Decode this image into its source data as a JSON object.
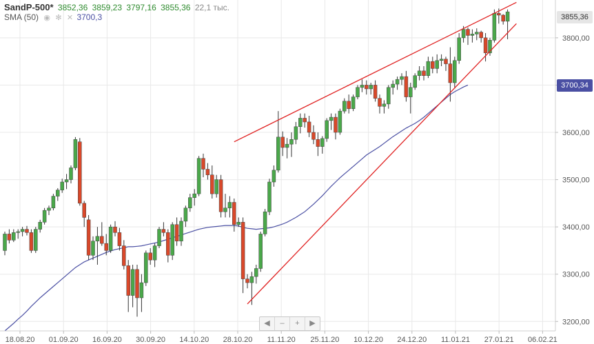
{
  "header": {
    "symbol": "SandP-500*",
    "last": "3852,36",
    "high": "3859,23",
    "low": "3797,16",
    "close": "3855,36",
    "volume": "22,1 тыс.",
    "sma_label": "SMA (50)",
    "sma_value": "3700,3",
    "eye_icon": "eye-icon",
    "gear_icon": "gear-icon",
    "close_icon": "close-icon"
  },
  "tags": {
    "price": "3855,36",
    "sma": "3700,34"
  },
  "nav": {
    "left": "◀",
    "minus": "–",
    "plus": "+",
    "right": "▶"
  },
  "colors": {
    "up": "#4aa84a",
    "down": "#d9482a",
    "sma": "#4a4fa3",
    "trend": "#e02020",
    "grid": "#e8e8e8"
  },
  "chart_data": {
    "type": "candlestick",
    "y_ticks": [
      "3200,00",
      "3300,00",
      "3400,00",
      "3500,00",
      "3600,00",
      "3700,00",
      "3800,00"
    ],
    "x_ticks": [
      "18.08.20",
      "01.09.20",
      "16.09.20",
      "30.09.20",
      "14.10.20",
      "28.10.20",
      "11.11.20",
      "25.11.20",
      "10.12.20",
      "24.12.20",
      "11.01.21",
      "27.01.21",
      "06.02.21"
    ],
    "ylim": [
      3180,
      3880
    ],
    "candles": [
      [
        3350,
        3390,
        3340,
        3385
      ],
      [
        3385,
        3395,
        3365,
        3372
      ],
      [
        3372,
        3395,
        3368,
        3388
      ],
      [
        3388,
        3395,
        3375,
        3390
      ],
      [
        3390,
        3400,
        3380,
        3395
      ],
      [
        3395,
        3402,
        3382,
        3388
      ],
      [
        3388,
        3395,
        3345,
        3350
      ],
      [
        3350,
        3400,
        3345,
        3395
      ],
      [
        3395,
        3415,
        3388,
        3410
      ],
      [
        3410,
        3440,
        3405,
        3435
      ],
      [
        3435,
        3445,
        3425,
        3440
      ],
      [
        3440,
        3470,
        3435,
        3465
      ],
      [
        3465,
        3482,
        3455,
        3478
      ],
      [
        3478,
        3502,
        3472,
        3495
      ],
      [
        3495,
        3512,
        3480,
        3500
      ],
      [
        3500,
        3530,
        3492,
        3525
      ],
      [
        3525,
        3590,
        3520,
        3585
      ],
      [
        3580,
        3588,
        3445,
        3450
      ],
      [
        3450,
        3455,
        3400,
        3420
      ],
      [
        3415,
        3425,
        3330,
        3340
      ],
      [
        3340,
        3380,
        3330,
        3370
      ],
      [
        3370,
        3400,
        3320,
        3380
      ],
      [
        3380,
        3410,
        3360,
        3365
      ],
      [
        3365,
        3385,
        3340,
        3350
      ],
      [
        3350,
        3405,
        3345,
        3400
      ],
      [
        3400,
        3412,
        3380,
        3388
      ],
      [
        3388,
        3398,
        3350,
        3360
      ],
      [
        3360,
        3372,
        3310,
        3318
      ],
      [
        3318,
        3330,
        3220,
        3255
      ],
      [
        3255,
        3320,
        3230,
        3310
      ],
      [
        3310,
        3320,
        3210,
        3250
      ],
      [
        3250,
        3300,
        3220,
        3282
      ],
      [
        3282,
        3350,
        3275,
        3345
      ],
      [
        3345,
        3355,
        3320,
        3330
      ],
      [
        3330,
        3365,
        3315,
        3360
      ],
      [
        3360,
        3400,
        3355,
        3395
      ],
      [
        3395,
        3410,
        3380,
        3388
      ],
      [
        3388,
        3395,
        3325,
        3340
      ],
      [
        3340,
        3410,
        3330,
        3405
      ],
      [
        3405,
        3420,
        3360,
        3370
      ],
      [
        3370,
        3420,
        3360,
        3412
      ],
      [
        3412,
        3445,
        3400,
        3440
      ],
      [
        3440,
        3470,
        3432,
        3462
      ],
      [
        3462,
        3480,
        3445,
        3470
      ],
      [
        3470,
        3550,
        3465,
        3545
      ],
      [
        3545,
        3555,
        3505,
        3522
      ],
      [
        3522,
        3535,
        3500,
        3510
      ],
      [
        3510,
        3530,
        3460,
        3470
      ],
      [
        3470,
        3510,
        3462,
        3500
      ],
      [
        3500,
        3510,
        3420,
        3432
      ],
      [
        3432,
        3470,
        3420,
        3440
      ],
      [
        3440,
        3465,
        3420,
        3452
      ],
      [
        3452,
        3460,
        3390,
        3405
      ],
      [
        3405,
        3420,
        3400,
        3410
      ],
      [
        3410,
        3420,
        3260,
        3290
      ],
      [
        3290,
        3300,
        3270,
        3282
      ],
      [
        3282,
        3305,
        3235,
        3295
      ],
      [
        3295,
        3320,
        3280,
        3312
      ],
      [
        3312,
        3390,
        3305,
        3385
      ],
      [
        3385,
        3438,
        3380,
        3432
      ],
      [
        3432,
        3502,
        3425,
        3495
      ],
      [
        3495,
        3530,
        3485,
        3520
      ],
      [
        3520,
        3645,
        3515,
        3590
      ],
      [
        3590,
        3602,
        3550,
        3568
      ],
      [
        3568,
        3588,
        3545,
        3575
      ],
      [
        3575,
        3600,
        3548,
        3585
      ],
      [
        3585,
        3622,
        3575,
        3612
      ],
      [
        3612,
        3640,
        3598,
        3630
      ],
      [
        3630,
        3640,
        3610,
        3622
      ],
      [
        3622,
        3635,
        3590,
        3600
      ],
      [
        3600,
        3615,
        3575,
        3585
      ],
      [
        3585,
        3600,
        3550,
        3570
      ],
      [
        3570,
        3592,
        3555,
        3587
      ],
      [
        3587,
        3630,
        3580,
        3625
      ],
      [
        3625,
        3640,
        3605,
        3632
      ],
      [
        3632,
        3640,
        3585,
        3600
      ],
      [
        3600,
        3650,
        3595,
        3645
      ],
      [
        3645,
        3672,
        3640,
        3666
      ],
      [
        3666,
        3680,
        3640,
        3650
      ],
      [
        3650,
        3680,
        3645,
        3675
      ],
      [
        3675,
        3700,
        3670,
        3695
      ],
      [
        3695,
        3712,
        3685,
        3700
      ],
      [
        3700,
        3710,
        3680,
        3692
      ],
      [
        3692,
        3705,
        3680,
        3700
      ],
      [
        3700,
        3710,
        3665,
        3672
      ],
      [
        3672,
        3680,
        3640,
        3655
      ],
      [
        3655,
        3668,
        3640,
        3660
      ],
      [
        3660,
        3700,
        3650,
        3695
      ],
      [
        3695,
        3710,
        3680,
        3702
      ],
      [
        3702,
        3718,
        3690,
        3712
      ],
      [
        3712,
        3725,
        3700,
        3718
      ],
      [
        3718,
        3730,
        3665,
        3675
      ],
      [
        3675,
        3705,
        3640,
        3695
      ],
      [
        3695,
        3725,
        3690,
        3720
      ],
      [
        3720,
        3740,
        3710,
        3730
      ],
      [
        3730,
        3740,
        3710,
        3720
      ],
      [
        3720,
        3760,
        3715,
        3750
      ],
      [
        3750,
        3760,
        3725,
        3735
      ],
      [
        3735,
        3765,
        3725,
        3752
      ],
      [
        3752,
        3765,
        3740,
        3755
      ],
      [
        3755,
        3760,
        3730,
        3745
      ],
      [
        3745,
        3780,
        3665,
        3705
      ],
      [
        3705,
        3760,
        3695,
        3752
      ],
      [
        3752,
        3810,
        3745,
        3800
      ],
      [
        3800,
        3825,
        3790,
        3818
      ],
      [
        3818,
        3822,
        3785,
        3805
      ],
      [
        3805,
        3818,
        3790,
        3808
      ],
      [
        3808,
        3820,
        3795,
        3812
      ],
      [
        3812,
        3815,
        3790,
        3800
      ],
      [
        3800,
        3810,
        3750,
        3768
      ],
      [
        3768,
        3800,
        3762,
        3795
      ],
      [
        3795,
        3860,
        3790,
        3852
      ],
      [
        3852,
        3862,
        3830,
        3848
      ],
      [
        3848,
        3850,
        3828,
        3835
      ],
      [
        3835,
        3860,
        3797,
        3855
      ]
    ],
    "sma": [
      3180,
      3188,
      3196,
      3205,
      3213,
      3222,
      3232,
      3241,
      3250,
      3258,
      3266,
      3274,
      3282,
      3290,
      3298,
      3306,
      3314,
      3320,
      3326,
      3330,
      3334,
      3338,
      3342,
      3346,
      3349,
      3352,
      3354,
      3356,
      3358,
      3358,
      3359,
      3360,
      3362,
      3364,
      3366,
      3368,
      3371,
      3374,
      3377,
      3380,
      3383,
      3386,
      3389,
      3392,
      3395,
      3397,
      3399,
      3400,
      3401,
      3402,
      3403,
      3403,
      3403,
      3402,
      3399,
      3397,
      3396,
      3395,
      3396,
      3397,
      3398,
      3400,
      3403,
      3406,
      3410,
      3415,
      3420,
      3426,
      3432,
      3440,
      3448,
      3457,
      3466,
      3476,
      3486,
      3495,
      3504,
      3512,
      3520,
      3528,
      3536,
      3544,
      3552,
      3558,
      3564,
      3570,
      3577,
      3584,
      3591,
      3597,
      3603,
      3609,
      3614,
      3619,
      3625,
      3632,
      3640,
      3648,
      3656,
      3664,
      3672,
      3680,
      3686,
      3691,
      3696,
      3700
    ],
    "trendlines": [
      {
        "from": [
          52,
          3580
        ],
        "to": [
          116,
          3875
        ]
      },
      {
        "from": [
          55,
          3237
        ],
        "to": [
          116,
          3830
        ]
      }
    ]
  }
}
